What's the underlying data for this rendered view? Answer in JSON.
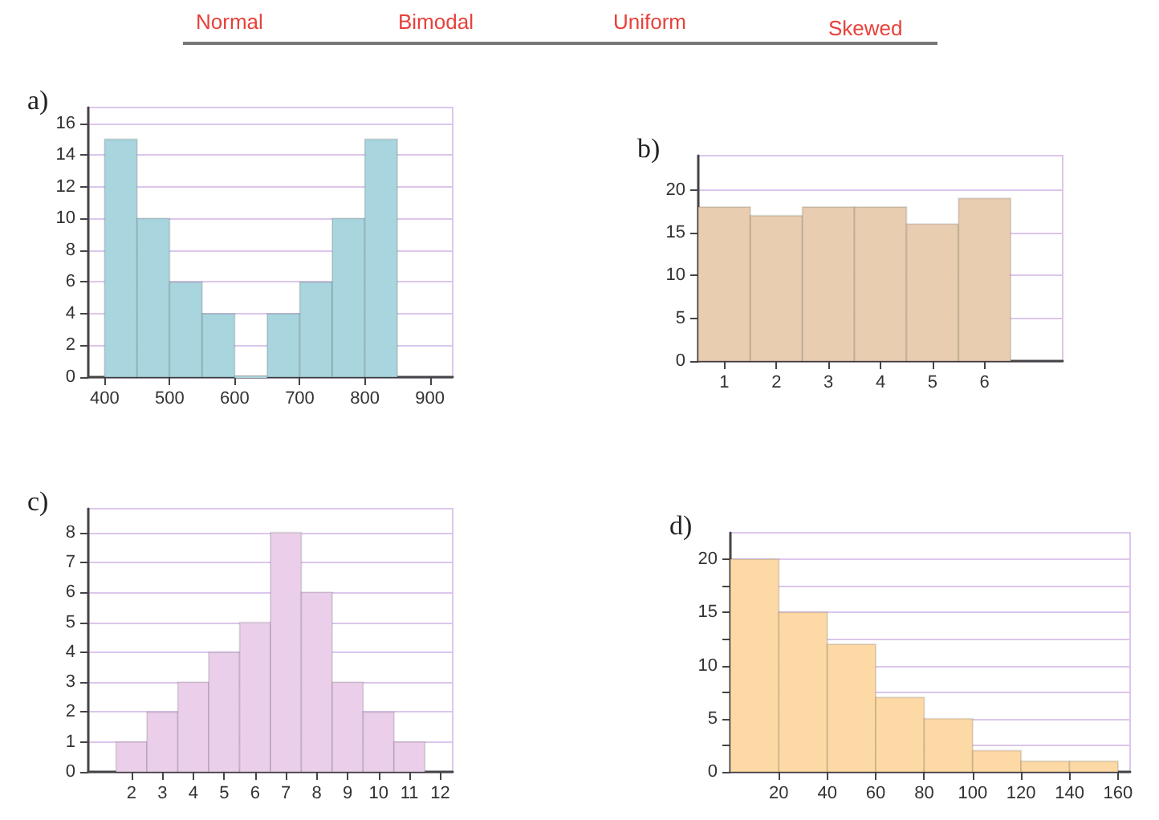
{
  "chart_data": [
    {
      "type": "other",
      "annotations": [
        "Normal",
        "Bimodal",
        "Uniform",
        "Skewed"
      ]
    },
    {
      "type": "histogram",
      "title": "a)",
      "bins": [
        400,
        450,
        500,
        550,
        600,
        650,
        700,
        750,
        800,
        850
      ],
      "values": [
        15,
        10,
        6,
        4,
        0,
        4,
        6,
        10,
        15
      ],
      "color": "#a9d5de",
      "xlim": [
        375,
        935
      ],
      "ylim": [
        0,
        17
      ],
      "xticks": [
        400,
        500,
        600,
        700,
        800,
        900
      ],
      "yticks": [
        0,
        2,
        4,
        6,
        8,
        10,
        12,
        14,
        16
      ],
      "grid": "y"
    },
    {
      "type": "histogram",
      "title": "b)",
      "bins": [
        0.5,
        1.5,
        2.5,
        3.5,
        4.5,
        5.5,
        6.5
      ],
      "values": [
        18,
        17,
        18,
        18,
        16,
        19
      ],
      "color": "#e8cdb0",
      "xlim": [
        0.5,
        7.5
      ],
      "ylim": [
        0,
        24
      ],
      "xticks": [
        1,
        2,
        3,
        4,
        5,
        6
      ],
      "yticks": [
        0,
        5,
        10,
        15,
        20
      ],
      "grid": "y"
    },
    {
      "type": "histogram",
      "title": "c)",
      "bins": [
        1.5,
        2.5,
        3.5,
        4.5,
        5.5,
        6.5,
        7.5,
        8.5,
        9.5,
        10.5,
        11.5
      ],
      "values": [
        1,
        2,
        3,
        4,
        5,
        8,
        6,
        3,
        2,
        1
      ],
      "color": "#ebcfea",
      "xlim": [
        0.6,
        12.4
      ],
      "ylim": [
        0,
        8.8
      ],
      "xticks": [
        2,
        3,
        4,
        5,
        6,
        7,
        8,
        9,
        10,
        11,
        12
      ],
      "yticks": [
        0,
        1,
        2,
        3,
        4,
        5,
        6,
        7,
        8
      ],
      "grid": "y"
    },
    {
      "type": "histogram",
      "title": "d)",
      "bins": [
        0,
        20,
        40,
        60,
        80,
        100,
        120,
        140,
        160
      ],
      "values": [
        20,
        15,
        12,
        7,
        5,
        2,
        1,
        1
      ],
      "color": "#fdd9a6",
      "xlim": [
        0,
        165
      ],
      "ylim": [
        0,
        22.5
      ],
      "xticks": [
        20,
        40,
        60,
        80,
        100,
        120,
        140,
        160
      ],
      "yticks": [
        0,
        {
          "value": 2.5,
          "label": null
        },
        5,
        {
          "value": 7.5,
          "label": null
        },
        10,
        {
          "value": 12.5,
          "label": null
        },
        15,
        {
          "value": 17.5,
          "label": null
        },
        20
      ],
      "grid": "y"
    }
  ]
}
